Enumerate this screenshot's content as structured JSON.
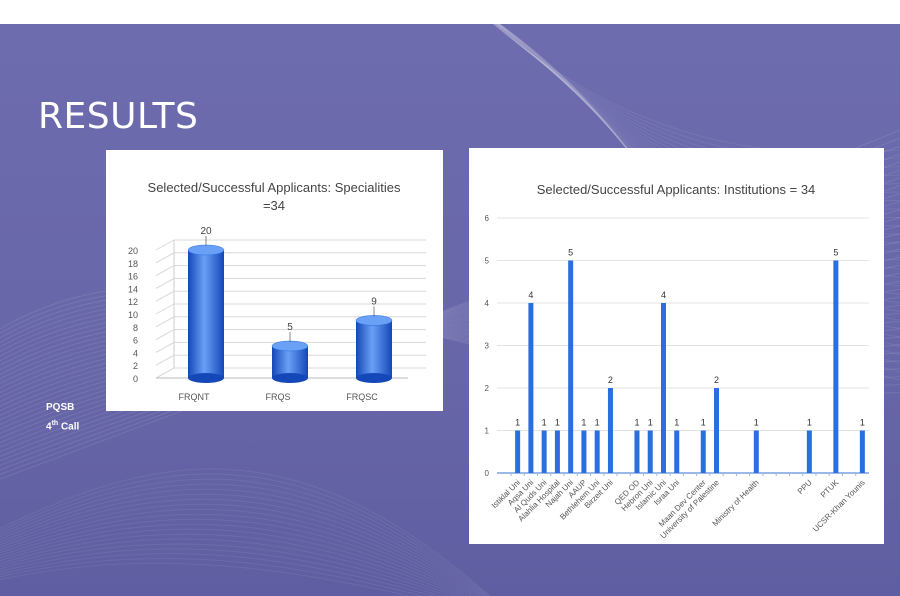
{
  "slide": {
    "title": "RESULTS",
    "footer": {
      "line1": "PQSB",
      "line2_num": "4",
      "line2_sup": "th",
      "line2_rest": " Call"
    }
  },
  "colors": {
    "background": "#6766a8",
    "bar": "#2a6fe0",
    "bar_light": "#6aa0f5",
    "bar_dark": "#1448b8"
  },
  "chart_data": [
    {
      "type": "bar",
      "title": "Selected/Successful Applicants: Specialities",
      "title_line2": "=34",
      "categories": [
        "FRQNT",
        "FRQS",
        "FRQSC"
      ],
      "values": [
        20,
        5,
        9
      ],
      "yticks": [
        0,
        2,
        4,
        6,
        8,
        10,
        12,
        14,
        16,
        18,
        20
      ],
      "ylim": [
        0,
        20
      ],
      "style": "3d-cylinder",
      "grid": true,
      "legend": "none"
    },
    {
      "type": "bar",
      "title": "Selected/Successful Applicants: Institutions = 34",
      "categories": [
        "Istiklal Uni",
        "Aqsa Uni",
        "Al Quds Uni",
        "Alahlia Hospital",
        "Najah Uni",
        "AAUP",
        "Bethlehem Uni",
        "Birzeit Uni",
        "",
        "QED OD",
        "Hebron Uni",
        "Islamic Uni",
        "Israa Uni",
        "",
        "Maan Dev Center",
        "University of Palestine",
        "",
        "",
        "Ministry of Health",
        "",
        "",
        "",
        "PPU",
        "",
        "PTUK",
        "",
        "UCSR-Khan Younis"
      ],
      "values": [
        1,
        4,
        1,
        1,
        5,
        1,
        1,
        2,
        0,
        1,
        1,
        4,
        1,
        0,
        1,
        2,
        0,
        0,
        1,
        0,
        0,
        0,
        1,
        0,
        5,
        0,
        1
      ],
      "value_labels": [
        "1",
        "4",
        "1",
        "1",
        "5",
        "1",
        "1",
        "2",
        "",
        "1",
        "1",
        "4",
        "1",
        "",
        "1",
        "2",
        "",
        "",
        "1",
        "",
        "",
        "",
        "1",
        "",
        "5",
        "",
        "1"
      ],
      "yticks": [
        0,
        1,
        2,
        3,
        4,
        5,
        6
      ],
      "ylim": [
        0,
        6
      ],
      "grid": true,
      "legend": "none"
    }
  ]
}
